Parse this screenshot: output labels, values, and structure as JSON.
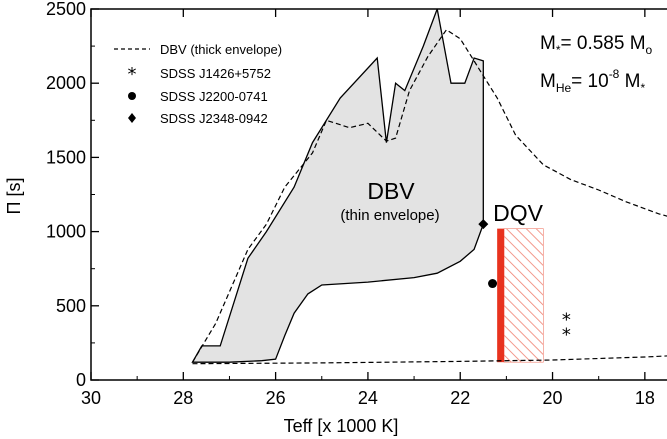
{
  "chart_data": {
    "type": "line",
    "xlabel": "Teff [x 1000 K]",
    "ylabel": "Π [s]",
    "xlim": [
      30,
      17
    ],
    "ylim": [
      0,
      2500
    ],
    "x_ticks": [
      30,
      28,
      26,
      24,
      22,
      20,
      18
    ],
    "y_ticks": [
      0,
      500,
      1000,
      1500,
      2000,
      2500
    ],
    "grid": false,
    "legend_position": "top-left",
    "legend": [
      {
        "label": "DBV (thick envelope)",
        "marker": "dashed-line"
      },
      {
        "label": "SDSS J1426+5752",
        "marker": "asterisk"
      },
      {
        "label": "SDSS J2200-0741",
        "marker": "circle"
      },
      {
        "label": "SDSS J2348-0942",
        "marker": "diamond"
      }
    ],
    "annotations": {
      "mass_main": "M",
      "mass_sub": "*",
      "mass_value": "= 0.585 M",
      "mass_unit_sub": "o",
      "mhe_main": "M",
      "mhe_sub": "He",
      "mhe_eq": "= 10",
      "mhe_exp": "-8",
      "mhe_m": " M",
      "mhe_m_sub": "*",
      "dbv_label": "DBV",
      "dbv_sublabel": "(thin envelope)",
      "dqv_label": "DQV"
    },
    "regions": {
      "dbv_thin_polygon": [
        [
          27.8,
          120
        ],
        [
          27.6,
          230
        ],
        [
          27.2,
          230
        ],
        [
          26.6,
          820
        ],
        [
          26.2,
          1000
        ],
        [
          25.6,
          1300
        ],
        [
          25.2,
          1600
        ],
        [
          24.6,
          1900
        ],
        [
          23.8,
          2170
        ],
        [
          23.6,
          1600
        ],
        [
          23.4,
          2000
        ],
        [
          23.2,
          1950
        ],
        [
          22.8,
          2250
        ],
        [
          22.5,
          2500
        ],
        [
          22.2,
          2000
        ],
        [
          21.9,
          2000
        ],
        [
          21.7,
          2170
        ],
        [
          21.5,
          2150
        ],
        [
          21.5,
          1450
        ],
        [
          21.5,
          1050
        ],
        [
          21.7,
          880
        ],
        [
          22.0,
          800
        ],
        [
          22.5,
          720
        ],
        [
          23.0,
          690
        ],
        [
          24.0,
          660
        ],
        [
          25.0,
          640
        ],
        [
          25.3,
          580
        ],
        [
          25.6,
          450
        ],
        [
          25.8,
          300
        ],
        [
          26.0,
          140
        ],
        [
          26.3,
          130
        ],
        [
          27.0,
          120
        ],
        [
          27.8,
          120
        ]
      ],
      "dqv_red_band": {
        "x": [
          21.2,
          21.05
        ],
        "y": [
          120,
          1020
        ],
        "color": "#e8321e"
      },
      "dqv_hatched_band": {
        "x": [
          21.05,
          20.2
        ],
        "y": [
          120,
          1020
        ],
        "color": "#f08070"
      }
    },
    "series": [
      {
        "name": "DBV (thick envelope)",
        "style": "dashed",
        "x": [
          27.8,
          27.3,
          26.6,
          26.2,
          25.8,
          25.2,
          24.9,
          24.4,
          24.0,
          23.6,
          23.4,
          23.1,
          22.7,
          22.3,
          22.0,
          21.8,
          21.5,
          21.2,
          20.8,
          20.2,
          19.6,
          19.0,
          18.4,
          17.7,
          17.0
        ],
        "y": [
          120,
          380,
          880,
          1050,
          1300,
          1530,
          1750,
          1700,
          1730,
          1610,
          1630,
          1950,
          2180,
          2360,
          2300,
          2200,
          2050,
          1900,
          1650,
          1450,
          1350,
          1280,
          1200,
          1120,
          1060
        ]
      },
      {
        "name": "DBV (thick envelope) lower",
        "style": "dashed",
        "x": [
          27.8,
          25.0,
          22.0,
          20.0,
          18.0,
          17.0
        ],
        "y": [
          110,
          115,
          125,
          135,
          155,
          170
        ]
      },
      {
        "name": "SDSS J1426+5752",
        "marker": "asterisk",
        "x": [
          19.7,
          19.7
        ],
        "y": [
          420,
          320
        ]
      },
      {
        "name": "SDSS J2200-0741",
        "marker": "circle",
        "x": [
          21.3
        ],
        "y": [
          650
        ]
      },
      {
        "name": "SDSS J2348-0942",
        "marker": "diamond",
        "x": [
          21.5
        ],
        "y": [
          1050
        ]
      }
    ]
  }
}
